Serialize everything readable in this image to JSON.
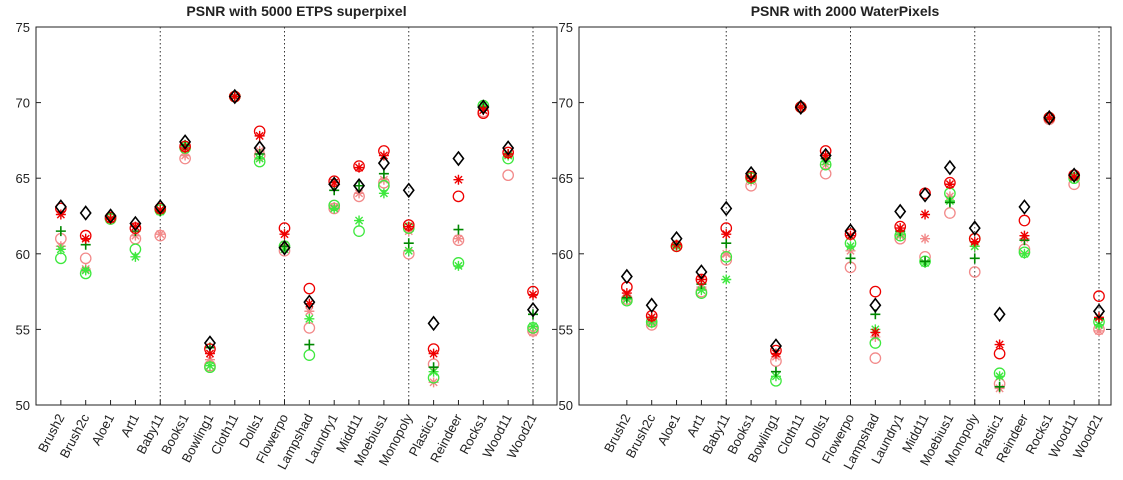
{
  "chart_data": [
    {
      "type": "scatter",
      "title": "PSNR with 5000 ETPS superpixel",
      "categories": [
        "Brush2",
        "Brush2c",
        "Aloe1",
        "Art1",
        "Baby11",
        "Books1",
        "Bowling1",
        "Cloth11",
        "Dolls1",
        "Flowerpo",
        "Lampshad",
        "Laundry1",
        "Midd11",
        "Moebius1",
        "Monopoly",
        "Plastic1",
        "Reindeer",
        "Rocks1",
        "Wood11",
        "Wood21"
      ],
      "ylim": [
        50,
        75
      ],
      "yticks": [
        50,
        55,
        60,
        65,
        70,
        75
      ],
      "vlines": [
        5,
        10,
        15,
        20
      ],
      "series": [
        {
          "color": "#f28a8a",
          "marker": "circle",
          "values": [
            61.0,
            59.7,
            62.3,
            61.0,
            61.2,
            66.3,
            52.6,
            70.4,
            66.5,
            60.2,
            55.1,
            63.0,
            63.8,
            64.7,
            60.0,
            52.7,
            60.9,
            69.4,
            65.2,
            54.9
          ]
        },
        {
          "color": "#f28a8a",
          "marker": "star",
          "values": [
            60.5,
            59.0,
            62.3,
            61.2,
            61.3,
            66.5,
            53.0,
            70.4,
            66.8,
            60.6,
            56.2,
            63.1,
            64.0,
            64.9,
            61.5,
            51.5,
            61.0,
            69.5,
            66.5,
            54.8
          ]
        },
        {
          "color": "#3ee83e",
          "marker": "circle",
          "values": [
            59.7,
            58.7,
            62.3,
            60.3,
            62.9,
            67.0,
            52.5,
            70.4,
            66.1,
            60.5,
            53.3,
            63.2,
            61.5,
            64.5,
            61.7,
            51.8,
            59.4,
            69.8,
            66.3,
            55.1
          ]
        },
        {
          "color": "#3ee83e",
          "marker": "star",
          "values": [
            60.3,
            58.9,
            62.3,
            59.8,
            62.8,
            67.1,
            52.6,
            70.4,
            66.3,
            60.3,
            55.7,
            63.0,
            62.2,
            64.0,
            60.2,
            52.2,
            59.2,
            69.8,
            66.5,
            55.2
          ]
        },
        {
          "color": "#008800",
          "marker": "plus",
          "values": [
            61.5,
            60.6,
            62.4,
            61.5,
            62.8,
            67.2,
            53.8,
            70.4,
            66.6,
            60.5,
            54.0,
            64.2,
            64.5,
            65.3,
            60.7,
            52.5,
            61.6,
            69.7,
            66.6,
            56.0
          ]
        },
        {
          "color": "#ee0000",
          "marker": "circle",
          "values": [
            63.0,
            61.2,
            62.4,
            61.7,
            63.0,
            67.1,
            53.7,
            70.4,
            68.1,
            61.7,
            57.7,
            64.8,
            65.8,
            66.8,
            61.9,
            53.7,
            63.8,
            69.3,
            66.7,
            57.5
          ]
        },
        {
          "color": "#ee0000",
          "marker": "star",
          "values": [
            62.6,
            61.0,
            62.3,
            61.8,
            62.9,
            67.0,
            53.4,
            70.4,
            67.8,
            61.3,
            56.7,
            64.7,
            65.7,
            66.5,
            61.8,
            53.4,
            64.9,
            69.5,
            66.6,
            57.3
          ]
        },
        {
          "color": "#000000",
          "marker": "diamond",
          "values": [
            63.1,
            62.7,
            62.5,
            62.0,
            63.1,
            67.4,
            54.1,
            70.4,
            67.0,
            60.4,
            56.8,
            64.6,
            64.5,
            66.0,
            64.2,
            55.4,
            66.3,
            69.7,
            67.0,
            56.3
          ]
        }
      ]
    },
    {
      "type": "scatter",
      "title": "PSNR with 2000 WaterPixels",
      "categories": [
        "Brush2",
        "Brush2c",
        "Aloe1",
        "Art1",
        "Baby11",
        "Books1",
        "Bowling1",
        "Cloth11",
        "Dolls1",
        "Flowerpo",
        "Lampshad",
        "Laundry1",
        "Midd11",
        "Moebius1",
        "Monopoly",
        "Plastic1",
        "Reindeer",
        "Rocks1",
        "Wood11",
        "Wood21"
      ],
      "ylim": [
        50,
        75
      ],
      "yticks": [
        50,
        55,
        60,
        65,
        70,
        75
      ],
      "vlines": [
        5,
        10,
        15,
        20
      ],
      "series": [
        {
          "color": "#f28a8a",
          "marker": "circle",
          "values": [
            57.0,
            55.3,
            60.5,
            57.5,
            59.6,
            64.5,
            52.9,
            69.7,
            65.3,
            59.1,
            53.1,
            61.0,
            59.8,
            62.7,
            58.8,
            51.4,
            60.3,
            68.9,
            64.6,
            55.0
          ]
        },
        {
          "color": "#f28a8a",
          "marker": "star",
          "values": [
            57.1,
            55.4,
            60.5,
            57.8,
            60.0,
            64.8,
            53.2,
            69.7,
            65.9,
            60.2,
            54.5,
            61.2,
            61.0,
            63.8,
            60.5,
            51.1,
            61.0,
            69.0,
            65.0,
            54.9
          ]
        },
        {
          "color": "#3ee83e",
          "marker": "circle",
          "values": [
            56.9,
            55.5,
            60.5,
            57.4,
            59.8,
            65.0,
            51.6,
            69.7,
            65.9,
            60.7,
            54.1,
            61.2,
            59.5,
            64.0,
            61.0,
            52.1,
            60.1,
            69.0,
            65.0,
            55.5
          ]
        },
        {
          "color": "#3ee83e",
          "marker": "star",
          "values": [
            57.0,
            55.5,
            60.5,
            57.6,
            58.3,
            65.0,
            51.9,
            69.7,
            66.1,
            60.5,
            55.0,
            61.3,
            59.4,
            63.5,
            60.5,
            51.9,
            60.0,
            69.0,
            65.0,
            55.3
          ]
        },
        {
          "color": "#008800",
          "marker": "plus",
          "values": [
            57.1,
            55.8,
            60.6,
            58.0,
            60.7,
            65.1,
            52.2,
            69.7,
            66.3,
            59.7,
            56.0,
            61.5,
            59.5,
            63.4,
            59.7,
            51.2,
            60.9,
            68.9,
            65.1,
            55.7
          ]
        },
        {
          "color": "#ee0000",
          "marker": "circle",
          "values": [
            57.8,
            55.9,
            60.5,
            58.3,
            61.7,
            65.1,
            53.6,
            69.7,
            66.8,
            61.3,
            57.5,
            61.8,
            64.0,
            64.7,
            61.0,
            53.4,
            62.2,
            69.0,
            65.2,
            57.2
          ]
        },
        {
          "color": "#ee0000",
          "marker": "star",
          "values": [
            57.4,
            55.8,
            60.6,
            58.3,
            61.3,
            65.0,
            53.4,
            69.7,
            66.5,
            61.2,
            54.8,
            61.7,
            62.6,
            64.6,
            60.8,
            54.0,
            61.2,
            69.0,
            65.1,
            55.8
          ]
        },
        {
          "color": "#000000",
          "marker": "diamond",
          "values": [
            58.5,
            56.6,
            61.0,
            58.8,
            63.0,
            65.3,
            53.9,
            69.7,
            66.5,
            61.5,
            56.6,
            62.8,
            63.9,
            65.7,
            61.7,
            56.0,
            63.1,
            69.0,
            65.2,
            56.2
          ]
        }
      ]
    }
  ]
}
